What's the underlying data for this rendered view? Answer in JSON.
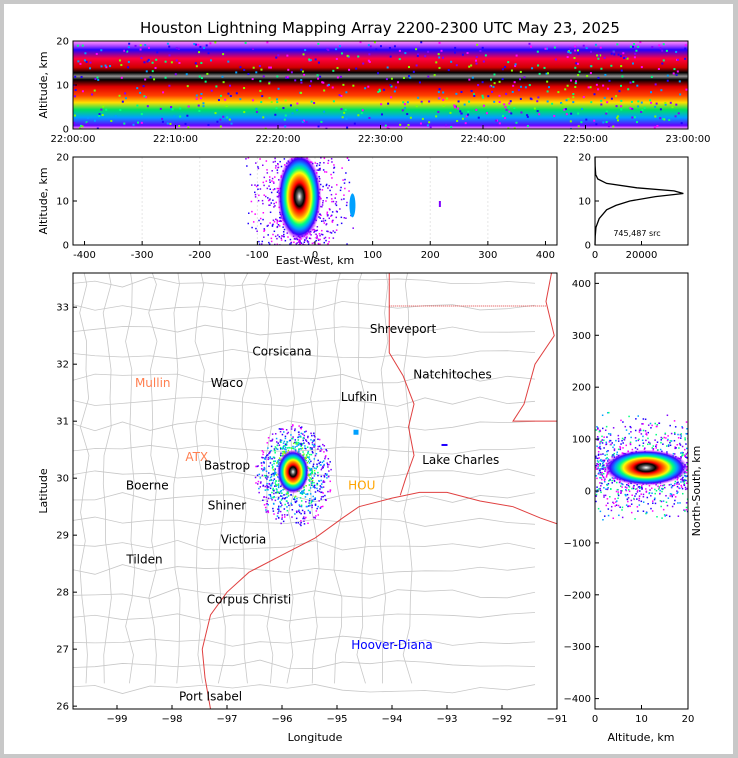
{
  "title": "Houston Lightning Mapping Array 2200-2300 UTC May 23, 2025",
  "chart_data": [
    {
      "id": "time_altitude",
      "type": "heatmap",
      "description_role": "source density vs time and altitude",
      "ylabel": "Altitude, km",
      "xlim": [
        "22:00:00",
        "23:00:00"
      ],
      "ylim": [
        0,
        20
      ],
      "xticks": [
        "22:00:00",
        "22:10:00",
        "22:20:00",
        "22:30:00",
        "22:40:00",
        "22:50:00",
        "23:00:00"
      ],
      "yticks": [
        "0",
        "10",
        "20"
      ],
      "band": {
        "core_altitude_km": 12,
        "top_km": 20,
        "bottom_km": 1
      }
    },
    {
      "id": "eastwest_altitude",
      "type": "heatmap",
      "xlabel": "East-West, km",
      "ylabel": "Altitude, km",
      "xlim": [
        -420,
        420
      ],
      "ylim": [
        0,
        20
      ],
      "xticks": [
        "-400",
        "-300",
        "-200",
        "-100",
        "0",
        "100",
        "200",
        "300",
        "400"
      ],
      "yticks": [
        "0",
        "10",
        "20"
      ],
      "cells": [
        {
          "x": -27,
          "alt": 11,
          "intensity": "peak"
        },
        {
          "x": 65,
          "alt": 9,
          "intensity": "low"
        },
        {
          "x": 215,
          "alt": 10,
          "intensity": "trace"
        }
      ]
    },
    {
      "id": "altitude_histogram",
      "type": "line",
      "xlim": [
        0,
        40000
      ],
      "ylim": [
        0,
        20
      ],
      "xticks": [
        "0",
        "20000"
      ],
      "yticks": [
        "0",
        "10",
        "20"
      ],
      "annotation": "745,487 src",
      "profile": [
        {
          "alt": 0,
          "count": 0
        },
        {
          "alt": 2,
          "count": 100
        },
        {
          "alt": 4,
          "count": 400
        },
        {
          "alt": 6,
          "count": 1800
        },
        {
          "alt": 8,
          "count": 5000
        },
        {
          "alt": 9,
          "count": 9000
        },
        {
          "alt": 10,
          "count": 15000
        },
        {
          "alt": 11,
          "count": 26000
        },
        {
          "alt": 11.7,
          "count": 38000
        },
        {
          "alt": 12.3,
          "count": 34000
        },
        {
          "alt": 13,
          "count": 18000
        },
        {
          "alt": 14,
          "count": 5000
        },
        {
          "alt": 15,
          "count": 1200
        },
        {
          "alt": 16,
          "count": 300
        },
        {
          "alt": 18,
          "count": 60
        },
        {
          "alt": 20,
          "count": 10
        }
      ]
    },
    {
      "id": "plan_view",
      "type": "scatter",
      "xlabel": "Longitude",
      "ylabel": "Latitude",
      "xlim": [
        -99.8,
        -91
      ],
      "ylim": [
        25.95,
        33.6
      ],
      "xticks": [
        "−99",
        "−98",
        "−97",
        "−96",
        "−95",
        "−94",
        "−93",
        "−92",
        "−91"
      ],
      "yticks": [
        "26",
        "27",
        "28",
        "29",
        "30",
        "31",
        "32",
        "33"
      ],
      "storm": {
        "lon": -95.8,
        "lat": 30.2,
        "intensity": "peak"
      },
      "cities": [
        {
          "name": "Shreveport",
          "lon": -93.8,
          "lat": 32.55,
          "color": "#000000"
        },
        {
          "name": "Corsicana",
          "lon": -96.0,
          "lat": 32.15,
          "color": "#000000"
        },
        {
          "name": "Natchitoches",
          "lon": -92.9,
          "lat": 31.75,
          "color": "#000000"
        },
        {
          "name": "Mullin",
          "lon": -98.35,
          "lat": 31.6,
          "color": "#ff7f50"
        },
        {
          "name": "Waco",
          "lon": -97.0,
          "lat": 31.6,
          "color": "#000000"
        },
        {
          "name": "Lufkin",
          "lon": -94.6,
          "lat": 31.35,
          "color": "#000000"
        },
        {
          "name": "Lake Charles",
          "lon": -92.75,
          "lat": 30.25,
          "color": "#000000"
        },
        {
          "name": "ATX",
          "lon": -97.55,
          "lat": 30.3,
          "color": "#ff7f50"
        },
        {
          "name": "Bastrop",
          "lon": -97.0,
          "lat": 30.15,
          "color": "#000000"
        },
        {
          "name": "HOU",
          "lon": -94.55,
          "lat": 29.8,
          "color": "#ffa500"
        },
        {
          "name": "Boerne",
          "lon": -98.45,
          "lat": 29.8,
          "color": "#000000"
        },
        {
          "name": "Shiner",
          "lon": -97.0,
          "lat": 29.45,
          "color": "#000000"
        },
        {
          "name": "Victoria",
          "lon": -96.7,
          "lat": 28.85,
          "color": "#000000"
        },
        {
          "name": "Tilden",
          "lon": -98.5,
          "lat": 28.5,
          "color": "#000000"
        },
        {
          "name": "Corpus Christi",
          "lon": -96.6,
          "lat": 27.8,
          "color": "#000000"
        },
        {
          "name": "Hoover-Diana",
          "lon": -94.0,
          "lat": 27.0,
          "color": "#0000ff"
        },
        {
          "name": "Port Isabel",
          "lon": -97.3,
          "lat": 26.1,
          "color": "#000000"
        }
      ]
    },
    {
      "id": "altitude_northsouth",
      "type": "heatmap",
      "xlabel": "Altitude, km",
      "ylabel": "North-South, km",
      "xlim": [
        0,
        20
      ],
      "ylim": [
        -420,
        420
      ],
      "xticks": [
        "0",
        "10",
        "20"
      ],
      "yticks": [
        "−400",
        "−300",
        "−200",
        "−100",
        "0",
        "100",
        "200",
        "300",
        "400"
      ],
      "core": {
        "alt": 11,
        "ns": 45
      }
    }
  ]
}
